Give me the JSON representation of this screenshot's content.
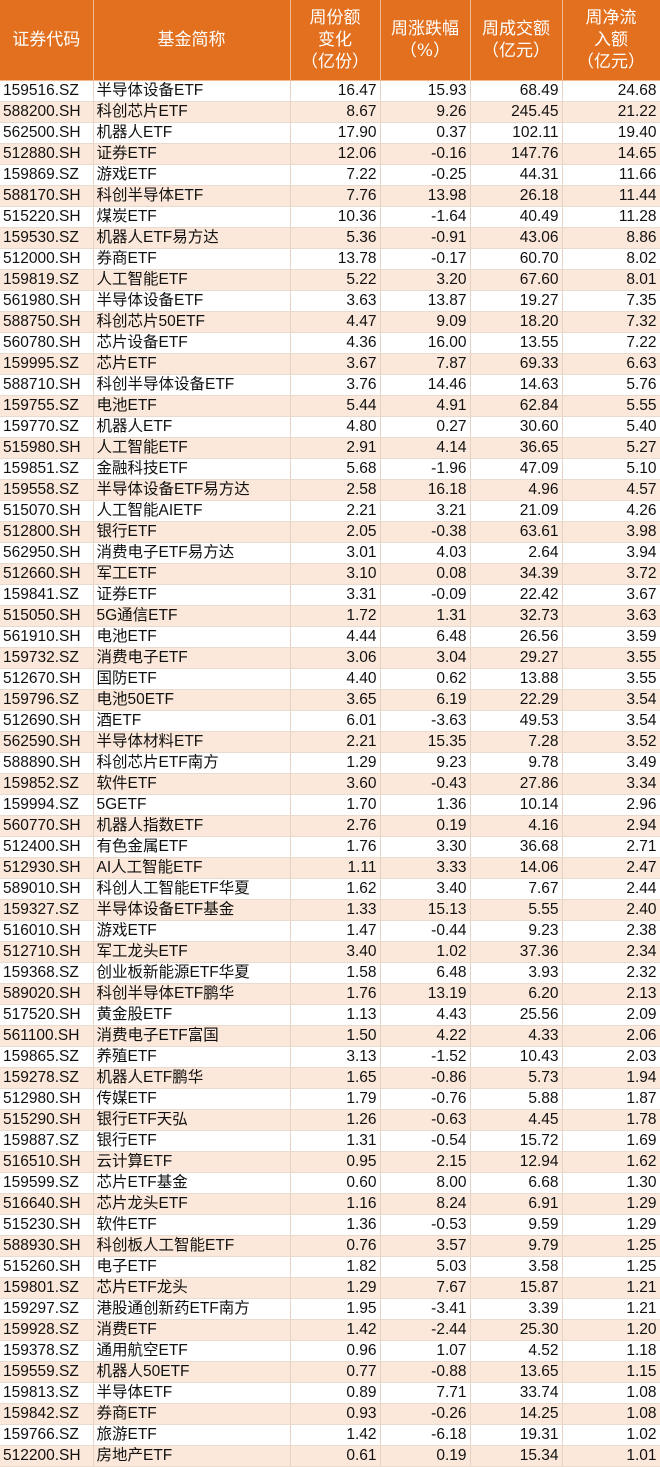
{
  "colors": {
    "header_bg": "#E2701E",
    "row_alt": "#FCE8DA"
  },
  "headers": [
    "证券代码",
    "基金简称",
    "周份额\n变化\n（亿份）",
    "周涨跌幅\n（%）",
    "周成交额\n（亿元）",
    "周净流\n入额\n（亿元）"
  ],
  "rows": [
    [
      "159516.SZ",
      "半导体设备ETF",
      "16.47",
      "15.93",
      "68.49",
      "24.68"
    ],
    [
      "588200.SH",
      "科创芯片ETF",
      "8.67",
      "9.26",
      "245.45",
      "21.22"
    ],
    [
      "562500.SH",
      "机器人ETF",
      "17.90",
      "0.37",
      "102.11",
      "19.40"
    ],
    [
      "512880.SH",
      "证券ETF",
      "12.06",
      "-0.16",
      "147.76",
      "14.65"
    ],
    [
      "159869.SZ",
      "游戏ETF",
      "7.22",
      "-0.25",
      "44.31",
      "11.66"
    ],
    [
      "588170.SH",
      "科创半导体ETF",
      "7.76",
      "13.98",
      "26.18",
      "11.44"
    ],
    [
      "515220.SH",
      "煤炭ETF",
      "10.36",
      "-1.64",
      "40.49",
      "11.28"
    ],
    [
      "159530.SZ",
      "机器人ETF易方达",
      "5.36",
      "-0.91",
      "43.06",
      "8.86"
    ],
    [
      "512000.SH",
      "券商ETF",
      "13.78",
      "-0.17",
      "60.70",
      "8.02"
    ],
    [
      "159819.SZ",
      "人工智能ETF",
      "5.22",
      "3.20",
      "67.60",
      "8.01"
    ],
    [
      "561980.SH",
      "半导体设备ETF",
      "3.63",
      "13.87",
      "19.27",
      "7.35"
    ],
    [
      "588750.SH",
      "科创芯片50ETF",
      "4.47",
      "9.09",
      "18.20",
      "7.32"
    ],
    [
      "560780.SH",
      "芯片设备ETF",
      "4.36",
      "16.00",
      "13.55",
      "7.22"
    ],
    [
      "159995.SZ",
      "芯片ETF",
      "3.67",
      "7.87",
      "69.33",
      "6.63"
    ],
    [
      "588710.SH",
      "科创半导体设备ETF",
      "3.76",
      "14.46",
      "14.63",
      "5.76"
    ],
    [
      "159755.SZ",
      "电池ETF",
      "5.44",
      "4.91",
      "62.84",
      "5.55"
    ],
    [
      "159770.SZ",
      "机器人ETF",
      "4.80",
      "0.27",
      "30.60",
      "5.40"
    ],
    [
      "515980.SH",
      "人工智能ETF",
      "2.91",
      "4.14",
      "36.65",
      "5.27"
    ],
    [
      "159851.SZ",
      "金融科技ETF",
      "5.68",
      "-1.96",
      "47.09",
      "5.10"
    ],
    [
      "159558.SZ",
      "半导体设备ETF易方达",
      "2.58",
      "16.18",
      "4.96",
      "4.57"
    ],
    [
      "515070.SH",
      "人工智能AIETF",
      "2.21",
      "3.21",
      "21.09",
      "4.26"
    ],
    [
      "512800.SH",
      "银行ETF",
      "2.05",
      "-0.38",
      "63.61",
      "3.98"
    ],
    [
      "562950.SH",
      "消费电子ETF易方达",
      "3.01",
      "4.03",
      "2.64",
      "3.94"
    ],
    [
      "512660.SH",
      "军工ETF",
      "3.10",
      "0.08",
      "34.39",
      "3.72"
    ],
    [
      "159841.SZ",
      "证券ETF",
      "3.31",
      "-0.09",
      "22.42",
      "3.67"
    ],
    [
      "515050.SH",
      "5G通信ETF",
      "1.72",
      "1.31",
      "32.73",
      "3.63"
    ],
    [
      "561910.SH",
      "电池ETF",
      "4.44",
      "6.48",
      "26.56",
      "3.59"
    ],
    [
      "159732.SZ",
      "消费电子ETF",
      "3.06",
      "3.04",
      "29.27",
      "3.55"
    ],
    [
      "512670.SH",
      "国防ETF",
      "4.40",
      "0.62",
      "13.88",
      "3.55"
    ],
    [
      "159796.SZ",
      "电池50ETF",
      "3.65",
      "6.19",
      "22.29",
      "3.54"
    ],
    [
      "512690.SH",
      "酒ETF",
      "6.01",
      "-3.63",
      "49.53",
      "3.54"
    ],
    [
      "562590.SH",
      "半导体材料ETF",
      "2.21",
      "15.35",
      "7.28",
      "3.52"
    ],
    [
      "588890.SH",
      "科创芯片ETF南方",
      "1.29",
      "9.23",
      "9.78",
      "3.49"
    ],
    [
      "159852.SZ",
      "软件ETF",
      "3.60",
      "-0.43",
      "27.86",
      "3.34"
    ],
    [
      "159994.SZ",
      "5GETF",
      "1.70",
      "1.36",
      "10.14",
      "2.96"
    ],
    [
      "560770.SH",
      "机器人指数ETF",
      "2.76",
      "0.19",
      "4.16",
      "2.94"
    ],
    [
      "512400.SH",
      "有色金属ETF",
      "1.76",
      "3.30",
      "36.68",
      "2.71"
    ],
    [
      "512930.SH",
      "AI人工智能ETF",
      "1.11",
      "3.33",
      "14.06",
      "2.47"
    ],
    [
      "589010.SH",
      "科创人工智能ETF华夏",
      "1.62",
      "3.40",
      "7.67",
      "2.44"
    ],
    [
      "159327.SZ",
      "半导体设备ETF基金",
      "1.33",
      "15.13",
      "5.55",
      "2.40"
    ],
    [
      "516010.SH",
      "游戏ETF",
      "1.47",
      "-0.44",
      "9.23",
      "2.38"
    ],
    [
      "512710.SH",
      "军工龙头ETF",
      "3.40",
      "1.02",
      "37.36",
      "2.34"
    ],
    [
      "159368.SZ",
      "创业板新能源ETF华夏",
      "1.58",
      "6.48",
      "3.93",
      "2.32"
    ],
    [
      "589020.SH",
      "科创半导体ETF鹏华",
      "1.76",
      "13.19",
      "6.20",
      "2.13"
    ],
    [
      "517520.SH",
      "黄金股ETF",
      "1.13",
      "4.43",
      "25.56",
      "2.09"
    ],
    [
      "561100.SH",
      "消费电子ETF富国",
      "1.50",
      "4.22",
      "4.33",
      "2.06"
    ],
    [
      "159865.SZ",
      "养殖ETF",
      "3.13",
      "-1.52",
      "10.43",
      "2.03"
    ],
    [
      "159278.SZ",
      "机器人ETF鹏华",
      "1.65",
      "-0.86",
      "5.73",
      "1.94"
    ],
    [
      "512980.SH",
      "传媒ETF",
      "1.79",
      "-0.76",
      "5.88",
      "1.87"
    ],
    [
      "515290.SH",
      "银行ETF天弘",
      "1.26",
      "-0.63",
      "4.45",
      "1.78"
    ],
    [
      "159887.SZ",
      "银行ETF",
      "1.31",
      "-0.54",
      "15.72",
      "1.69"
    ],
    [
      "516510.SH",
      "云计算ETF",
      "0.95",
      "2.15",
      "12.94",
      "1.62"
    ],
    [
      "159599.SZ",
      "芯片ETF基金",
      "0.60",
      "8.00",
      "6.68",
      "1.30"
    ],
    [
      "516640.SH",
      "芯片龙头ETF",
      "1.16",
      "8.24",
      "6.91",
      "1.29"
    ],
    [
      "515230.SH",
      "软件ETF",
      "1.36",
      "-0.53",
      "9.59",
      "1.29"
    ],
    [
      "588930.SH",
      "科创板人工智能ETF",
      "0.76",
      "3.57",
      "9.79",
      "1.25"
    ],
    [
      "515260.SH",
      "电子ETF",
      "1.82",
      "5.03",
      "3.58",
      "1.25"
    ],
    [
      "159801.SZ",
      "芯片ETF龙头",
      "1.29",
      "7.67",
      "15.87",
      "1.21"
    ],
    [
      "159297.SZ",
      "港股通创新药ETF南方",
      "1.95",
      "-3.41",
      "3.39",
      "1.21"
    ],
    [
      "159928.SZ",
      "消费ETF",
      "1.42",
      "-2.44",
      "25.30",
      "1.20"
    ],
    [
      "159378.SZ",
      "通用航空ETF",
      "0.96",
      "1.07",
      "4.52",
      "1.18"
    ],
    [
      "159559.SZ",
      "机器人50ETF",
      "0.77",
      "-0.88",
      "13.65",
      "1.15"
    ],
    [
      "159813.SZ",
      "半导体ETF",
      "0.89",
      "7.71",
      "33.74",
      "1.08"
    ],
    [
      "159842.SZ",
      "券商ETF",
      "0.93",
      "-0.26",
      "14.25",
      "1.08"
    ],
    [
      "159766.SZ",
      "旅游ETF",
      "1.42",
      "-6.18",
      "19.31",
      "1.02"
    ],
    [
      "512200.SH",
      "房地产ETF",
      "0.61",
      "0.19",
      "15.34",
      "1.01"
    ]
  ]
}
